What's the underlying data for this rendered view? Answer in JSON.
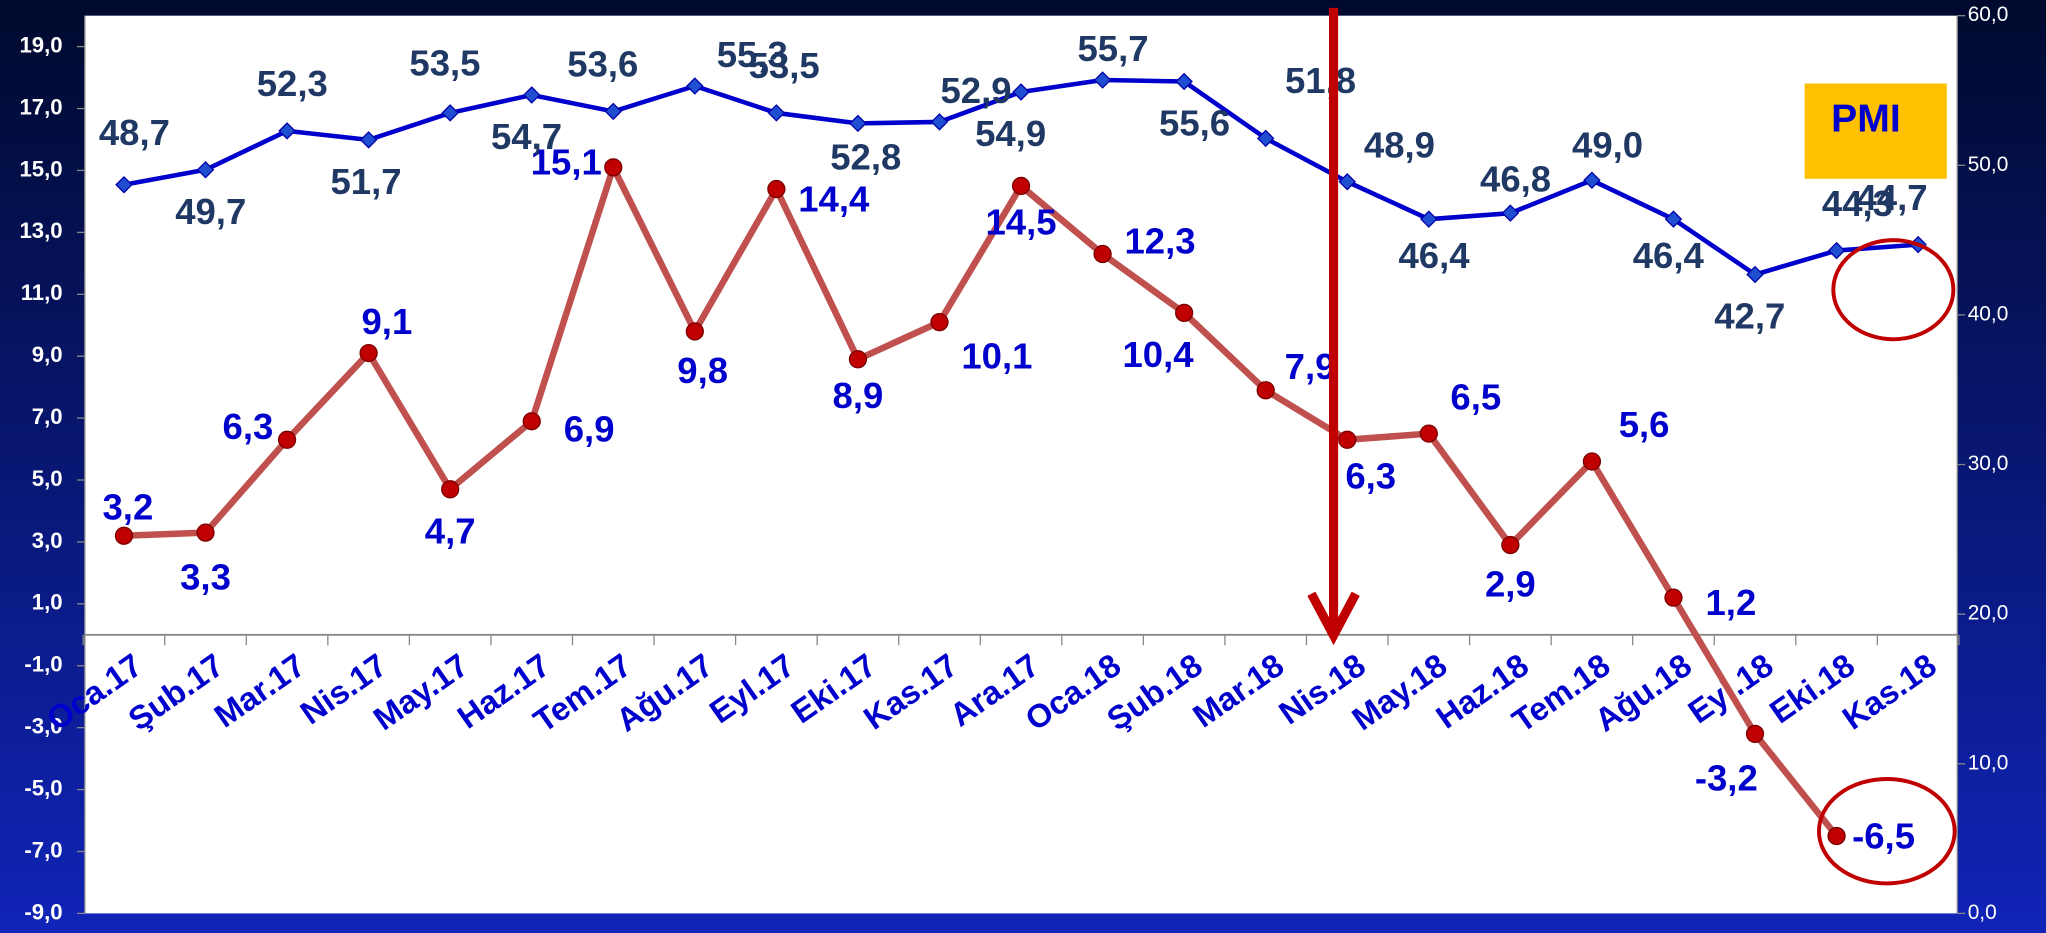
{
  "chart_data": {
    "type": "line",
    "categories": [
      "Oca.17",
      "Şub.17",
      "Mar.17",
      "Nis.17",
      "May.17",
      "Haz.17",
      "Tem.17",
      "Ağu.17",
      "Eyl.17",
      "Eki.17",
      "Kas.17",
      "Ara.17",
      "Oca.18",
      "Şub.18",
      "Mar.18",
      "Nis.18",
      "May.18",
      "Haz.18",
      "Tem.18",
      "Ağu.18",
      "Eyl.18",
      "Eki.18",
      "Kas.18"
    ],
    "series": [
      {
        "color": "#c0504d",
        "values": [
          3.2,
          3.3,
          6.3,
          9.1,
          4.7,
          6.9,
          15.1,
          9.8,
          14.4,
          8.9,
          10.1,
          14.5,
          12.3,
          10.4,
          7.9,
          6.3,
          6.5,
          2.9,
          5.6,
          1.2,
          -3.2,
          -6.5,
          null
        ],
        "value_labels": [
          "3,2",
          "3,3",
          "6,3",
          "9,1",
          "4,7",
          "6,9",
          "15,1",
          "9,8",
          "14,4",
          "8,9",
          "10,1",
          "14,5",
          "12,3",
          "10,4",
          "7,9",
          "6,3",
          "6,5",
          "2,9",
          "5,6",
          "1,2",
          "-3,2",
          "-6,5",
          null
        ]
      },
      {
        "color": "#0000cc",
        "axis": "y2",
        "values": [
          48.7,
          49.7,
          52.3,
          51.7,
          53.5,
          54.7,
          53.6,
          55.3,
          53.5,
          52.8,
          52.9,
          54.9,
          55.7,
          55.6,
          51.8,
          48.9,
          46.4,
          46.8,
          49.0,
          46.4,
          42.7,
          44.3,
          44.7
        ],
        "value_labels": [
          "48,7",
          "49,7",
          "52,3",
          "51,7",
          "53,5",
          "54,7",
          "53,6",
          "55,3",
          "53,5",
          "52,8",
          "52,9",
          "54,9",
          "55,7",
          "55,6",
          "51,8",
          "48,9",
          "46,4",
          "46,8",
          "49,0",
          "46,4",
          "42,7",
          "44,3",
          "44,7"
        ]
      }
    ],
    "ylim": [
      -9,
      20
    ],
    "yticks": [
      {
        "value": -9,
        "label": "-9,0"
      },
      {
        "value": -7,
        "label": "-7,0"
      },
      {
        "value": -5,
        "label": "-5,0"
      },
      {
        "value": -3,
        "label": "-3,0"
      },
      {
        "value": -1,
        "label": "-1,0"
      },
      {
        "value": 1,
        "label": "1,0"
      },
      {
        "value": 3,
        "label": "3,0"
      },
      {
        "value": 5,
        "label": "5,0"
      },
      {
        "value": 7,
        "label": "7,0"
      },
      {
        "value": 9,
        "label": "9,0"
      },
      {
        "value": 11,
        "label": "11,0"
      },
      {
        "value": 13,
        "label": "13,0"
      },
      {
        "value": 15,
        "label": "15,0"
      },
      {
        "value": 17,
        "label": "17,0"
      },
      {
        "value": 19,
        "label": "19,0"
      }
    ],
    "y2lim": [
      0,
      60
    ],
    "y2ticks": [
      {
        "value": 0,
        "label": "0,0"
      },
      {
        "value": 10,
        "label": "10,0"
      },
      {
        "value": 20,
        "label": "20,0"
      },
      {
        "value": 30,
        "label": "30,0"
      },
      {
        "value": 40,
        "label": "40,0"
      },
      {
        "value": 50,
        "label": "50,0"
      },
      {
        "value": 60,
        "label": "60,0"
      }
    ],
    "annotation": "PMI",
    "grid": false
  }
}
